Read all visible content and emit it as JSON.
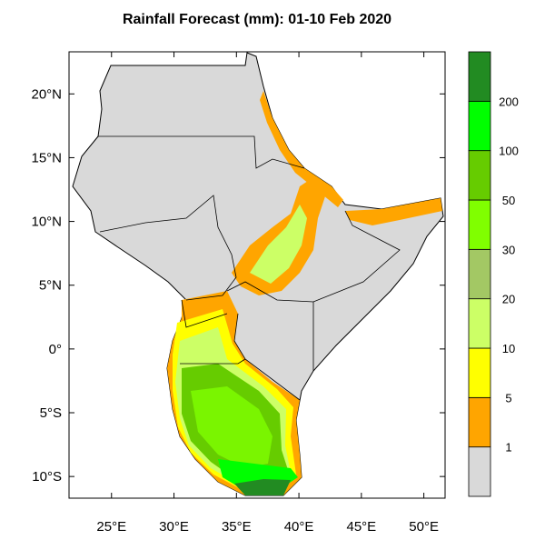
{
  "map": {
    "title": "Rainfall Forecast (mm): 01-10 Feb 2020",
    "lonlim": [
      21.6,
      51.7
    ],
    "latlim": [
      -11.7,
      23.3
    ],
    "lon_ticks": [
      {
        "value": 25,
        "label": "25°E"
      },
      {
        "value": 30,
        "label": "30°E"
      },
      {
        "value": 35,
        "label": "35°E"
      },
      {
        "value": 40,
        "label": "40°E"
      },
      {
        "value": 45,
        "label": "45°E"
      },
      {
        "value": 50,
        "label": "50°E"
      }
    ],
    "lat_ticks": [
      {
        "value": 20,
        "label": "20°N"
      },
      {
        "value": 15,
        "label": "15°N"
      },
      {
        "value": 10,
        "label": "10°N"
      },
      {
        "value": 5,
        "label": "5°N"
      },
      {
        "value": 0,
        "label": "0°"
      },
      {
        "value": -5,
        "label": "5°S"
      },
      {
        "value": -10,
        "label": "10°S"
      }
    ],
    "colorbar": {
      "levels": [
        1,
        5,
        10,
        20,
        30,
        50,
        100,
        200
      ],
      "colors": [
        "#d9d9d9",
        "#ffa500",
        "#ffff00",
        "#ccff66",
        "#a3c864",
        "#80ff00",
        "#66cc00",
        "#00ff00",
        "#228b22"
      ]
    }
  }
}
